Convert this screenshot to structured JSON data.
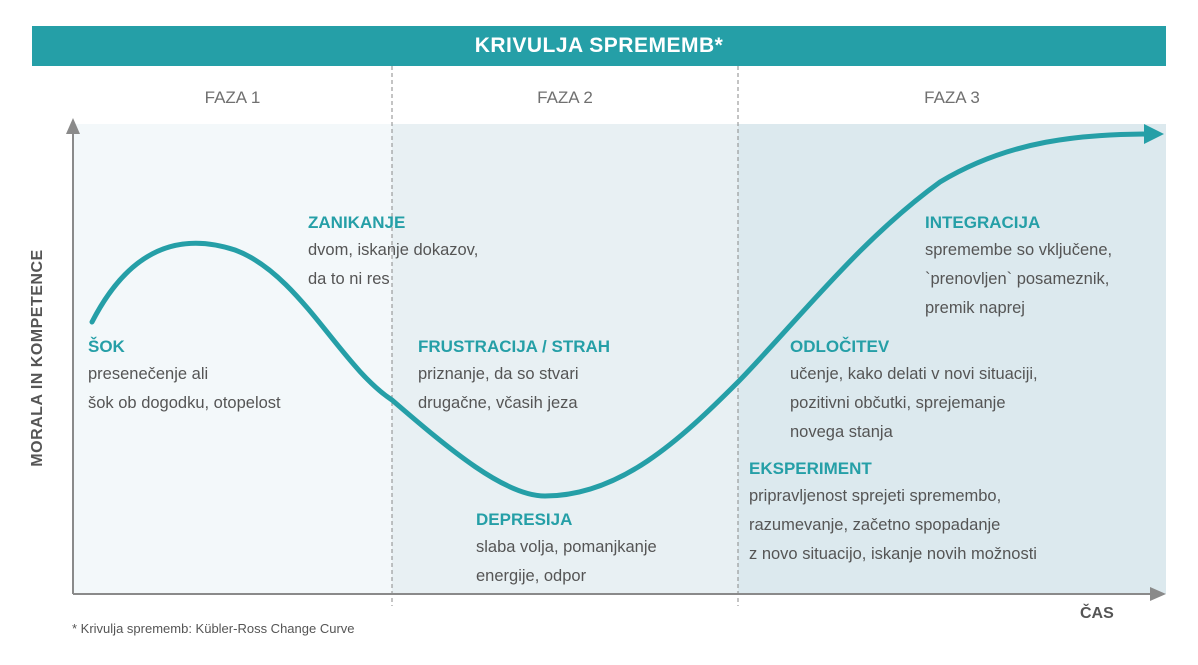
{
  "title": "KRIVULJA SPREMEMB*",
  "phases": [
    "FAZA 1",
    "FAZA 2",
    "FAZA 3"
  ],
  "y_axis_label": "MORALA IN KOMPETENCE",
  "x_axis_label": "ČAS",
  "footnote": "* Krivulja sprememb: Kübler-Ross Change Curve",
  "colors": {
    "accent": "#259fa7",
    "text": "#555555",
    "phase1_bg": "#f3f8fa",
    "phase2_bg": "#e8f0f3",
    "phase3_bg": "#dce9ee"
  },
  "stages": {
    "sok": {
      "title": "ŠOK",
      "lines": [
        "presenečenje ali",
        "šok ob dogodku, otopelost"
      ]
    },
    "zanikanje": {
      "title": "ZANIKANJE",
      "lines": [
        "dvom, iskanje dokazov,",
        "da to ni res"
      ]
    },
    "frustracija": {
      "title": "FRUSTRACIJA / STRAH",
      "lines": [
        "priznanje, da so stvari",
        "drugačne, včasih jeza"
      ]
    },
    "depresija": {
      "title": "DEPRESIJA",
      "lines": [
        "slaba volja, pomanjkanje",
        "energije, odpor"
      ]
    },
    "eksperiment": {
      "title": "EKSPERIMENT",
      "lines": [
        "pripravljenost sprejeti spremembo,",
        "razumevanje, začetno spopadanje",
        "z novo situacijo, iskanje novih možnosti"
      ]
    },
    "odlocitev": {
      "title": "ODLOČITEV",
      "lines": [
        "učenje, kako delati v novi situaciji,",
        "pozitivni občutki, sprejemanje",
        "novega stanja"
      ]
    },
    "integracija": {
      "title": "INTEGRACIJA",
      "lines": [
        "spremembe so vključene,",
        "`prenovljen` posameznik,",
        "premik naprej"
      ]
    }
  }
}
